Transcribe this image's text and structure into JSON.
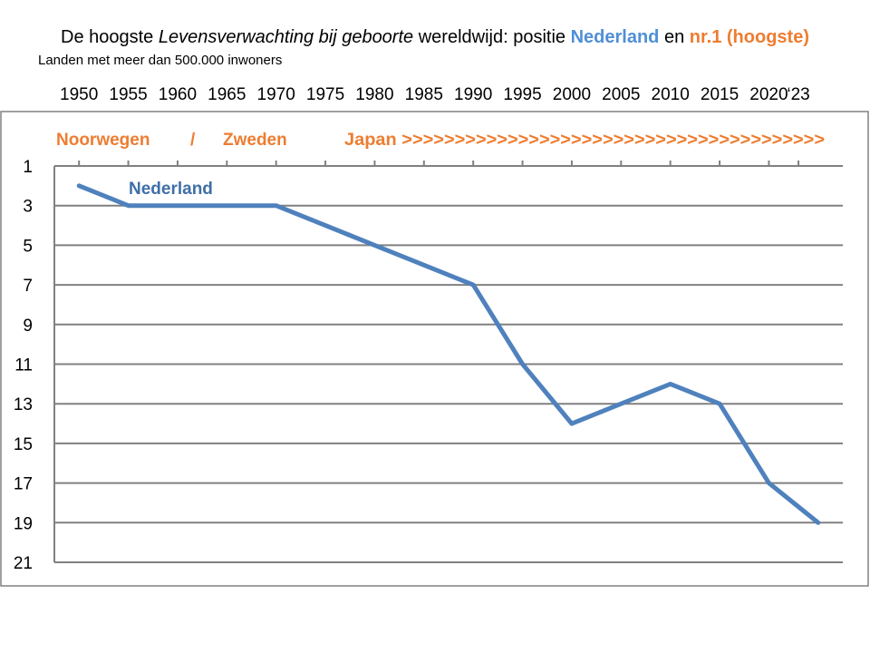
{
  "header": {
    "title_pre": "De hoogste ",
    "title_italic": "Levensverwachting bij geboorte",
    "title_mid": " wereldwijd: positie ",
    "title_nl": "Nederland",
    "title_en": " en ",
    "title_nr1": "nr.1 (hoogste)",
    "subtitle": "Landen met meer dan 500.000 inwoners"
  },
  "colors": {
    "series": "#4f81bd",
    "leader_text": "#ed7d31",
    "title_highlight": "#4f8fd6",
    "grid": "#808080"
  },
  "chart_data": {
    "type": "line",
    "y_inverted": true,
    "ylim": [
      1,
      21
    ],
    "y_ticks": [
      "1",
      "3",
      "5",
      "7",
      "9",
      "11",
      "13",
      "15",
      "17",
      "19",
      "21"
    ],
    "y_tick_values": [
      1,
      3,
      5,
      7,
      9,
      11,
      13,
      15,
      17,
      19,
      21
    ],
    "x_ticks": [
      "1950",
      "1955",
      "1960",
      "1965",
      "1970",
      "1975",
      "1980",
      "1985",
      "1990",
      "1995",
      "2000",
      "2005",
      "2010",
      "2015",
      "2020",
      "‘23"
    ],
    "x_tick_values": [
      1950,
      1955,
      1960,
      1965,
      1970,
      1975,
      1980,
      1985,
      1990,
      1995,
      2000,
      2005,
      2010,
      2015,
      2020,
      2023
    ],
    "xlim": [
      1947.5,
      2027.5
    ],
    "grid": true,
    "series": [
      {
        "name": "Nederland",
        "x": [
          1950,
          1955,
          1965,
          1970,
          1980,
          1990,
          1995,
          2000,
          2005,
          2010,
          2015,
          2020,
          2025
        ],
        "values": [
          2,
          3,
          3,
          3,
          5,
          7,
          11,
          14,
          13,
          12,
          13,
          17,
          19
        ]
      }
    ],
    "leaders": {
      "noorwegen": "Noorwegen",
      "slash": "/",
      "zweden": "Zweden",
      "japan": "Japan >>>>>>>>>>>>>>>>>>>>>>>>>>>>>>>>>>>>>>>>"
    }
  }
}
